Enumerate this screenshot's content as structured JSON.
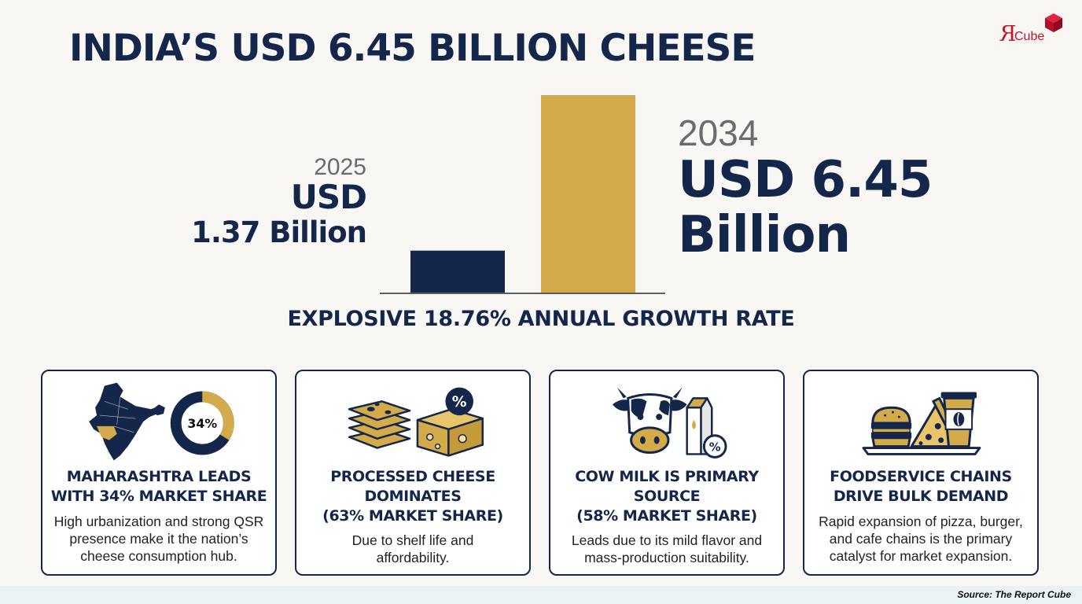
{
  "title": "INDIA’S USD 6.45 BILLION CHEESE",
  "logo": {
    "mark": "R",
    "text": "Cube"
  },
  "chart_data": {
    "type": "bar",
    "categories": [
      "2025",
      "2034"
    ],
    "values": [
      1.37,
      6.45
    ],
    "unit": "USD Billion",
    "colors": [
      "#14264a",
      "#d4ab4a"
    ],
    "title": "INDIA’S USD 6.45 BILLION CHEESE",
    "ylim": [
      0,
      6.45
    ]
  },
  "left_value": {
    "year": "2025",
    "line1": "USD",
    "line2": "1.37 Billion"
  },
  "right_value": {
    "year": "2034",
    "line1": "USD 6.45",
    "line2": "Billion"
  },
  "growth_text": "EXPLOSIVE 18.76% ANNUAL GROWTH RATE",
  "cards": [
    {
      "icon": "india-map-donut-icon",
      "badge": "34%",
      "donut_fraction": 0.34,
      "title": [
        "MAHARASHTRA LEADS",
        "WITH 34% MARKET SHARE"
      ],
      "desc": [
        "High urbanization and strong QSR",
        "presence make it the nation’s",
        "cheese consumption hub."
      ]
    },
    {
      "icon": "cheese-slices-percent-icon",
      "badge": "%",
      "title": [
        "PROCESSED CHEESE",
        "DOMINATES",
        "(63% MARKET SHARE)"
      ],
      "desc": [
        "Due to shelf life and",
        "affordability."
      ]
    },
    {
      "icon": "cow-milk-carton-icon",
      "badge": "%",
      "title": [
        "COW MILK IS PRIMARY",
        "SOURCE",
        "(58% MARKET SHARE)"
      ],
      "desc": [
        "Leads due to its mild flavor and",
        "mass-production suitability."
      ]
    },
    {
      "icon": "burger-pizza-coffee-icon",
      "title": [
        "FOODSERVICE CHAINS",
        "DRIVE BULK DEMAND"
      ],
      "desc": [
        "Rapid expansion of pizza, burger,",
        "and cafe chains is the primary",
        "catalyst for market expansion."
      ]
    }
  ],
  "colors": {
    "navy": "#14264a",
    "gold": "#d4ab4a",
    "logo_red": "#c8102e"
  },
  "source": "Source: The Report Cube"
}
